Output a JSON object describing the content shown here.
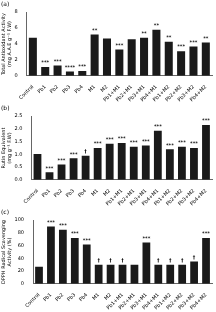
{
  "chart_data": [
    {
      "type": "bar",
      "title": "(a)",
      "ylabel": "Total Antioxidant Activity\n(mg A.A.E g⁻¹ F.W)",
      "categories": [
        "Control",
        "Pb1",
        "Pb2",
        "Pb3",
        "Pb4",
        "M1",
        "M2",
        "Pb1+M1",
        "Pb2+M1",
        "Pb3+M1",
        "Pb4+M1",
        "Pb1+M2",
        "Pb2+M2",
        "Pb3+M2",
        "Pb4+M2"
      ],
      "values": [
        4.8,
        1.1,
        1.3,
        0.55,
        0.6,
        5.2,
        4.7,
        3.3,
        4.6,
        4.8,
        5.8,
        4.3,
        3.1,
        3.7,
        4.2
      ],
      "annotations": [
        null,
        "***",
        "***",
        "****",
        "***",
        "**",
        null,
        "***",
        null,
        "**",
        "**",
        "**",
        "***",
        "***",
        "**"
      ],
      "color": "#1a1a1a",
      "ylim": [
        0,
        8
      ],
      "yticks": [
        0,
        2,
        4,
        6,
        8
      ],
      "grid": false
    },
    {
      "type": "bar",
      "title": "(b)",
      "ylabel": "Rutin Equivalent\n(mg g⁻¹ F.W)",
      "categories": [
        "Control",
        "Pb1",
        "Pb2",
        "Pb3",
        "Pb4",
        "M1",
        "M2",
        "Pb1+M1",
        "Pb2+M1",
        "Pb3+M1",
        "Pb4+M1",
        "Pb1+M2",
        "Pb2+M2",
        "Pb3+M2",
        "Pb4+M2"
      ],
      "values": [
        1.02,
        0.3,
        0.6,
        0.85,
        0.95,
        1.25,
        1.42,
        1.45,
        1.3,
        1.35,
        1.93,
        1.2,
        1.3,
        1.25,
        2.15
      ],
      "annotations": [
        null,
        "***",
        "***",
        "***",
        "†",
        "***",
        "***",
        "***",
        "***",
        "***",
        "***",
        "***",
        "***",
        "***",
        "***"
      ],
      "color": "#1a1a1a",
      "ylim": [
        0,
        2.5
      ],
      "yticks": [
        {
          "value": 0,
          "label": "0.0"
        },
        0.5,
        {
          "value": 1,
          "label": "1.0"
        },
        1.5,
        {
          "value": 2,
          "label": "2.0"
        },
        2.5
      ],
      "grid": false
    },
    {
      "type": "bar",
      "title": "(c)",
      "ylabel": "DPPH Radical Scavenging\nActivity (%)",
      "categories": [
        "Control",
        "Pb1",
        "Pb2",
        "Pb3",
        "Pb4",
        "M1",
        "M2",
        "Pb1+M1",
        "Pb2+M1",
        "Pb3+M1",
        "Pb4+M1",
        "Pb1+M2",
        "Pb2+M2",
        "Pb3+M2",
        "Pb4+M2"
      ],
      "values": [
        27,
        90,
        85,
        72,
        62,
        30,
        30,
        30,
        30,
        65,
        30,
        30,
        30,
        35,
        72
      ],
      "annotations": [
        null,
        "***",
        "***",
        "***",
        "***",
        "†",
        "†",
        "†",
        null,
        "***",
        "†",
        "†",
        "†",
        "†",
        "***"
      ],
      "color": "#1a1a1a",
      "ylim": [
        0,
        100
      ],
      "yticks": [
        0,
        20,
        40,
        60,
        80,
        100
      ],
      "grid": false
    }
  ]
}
